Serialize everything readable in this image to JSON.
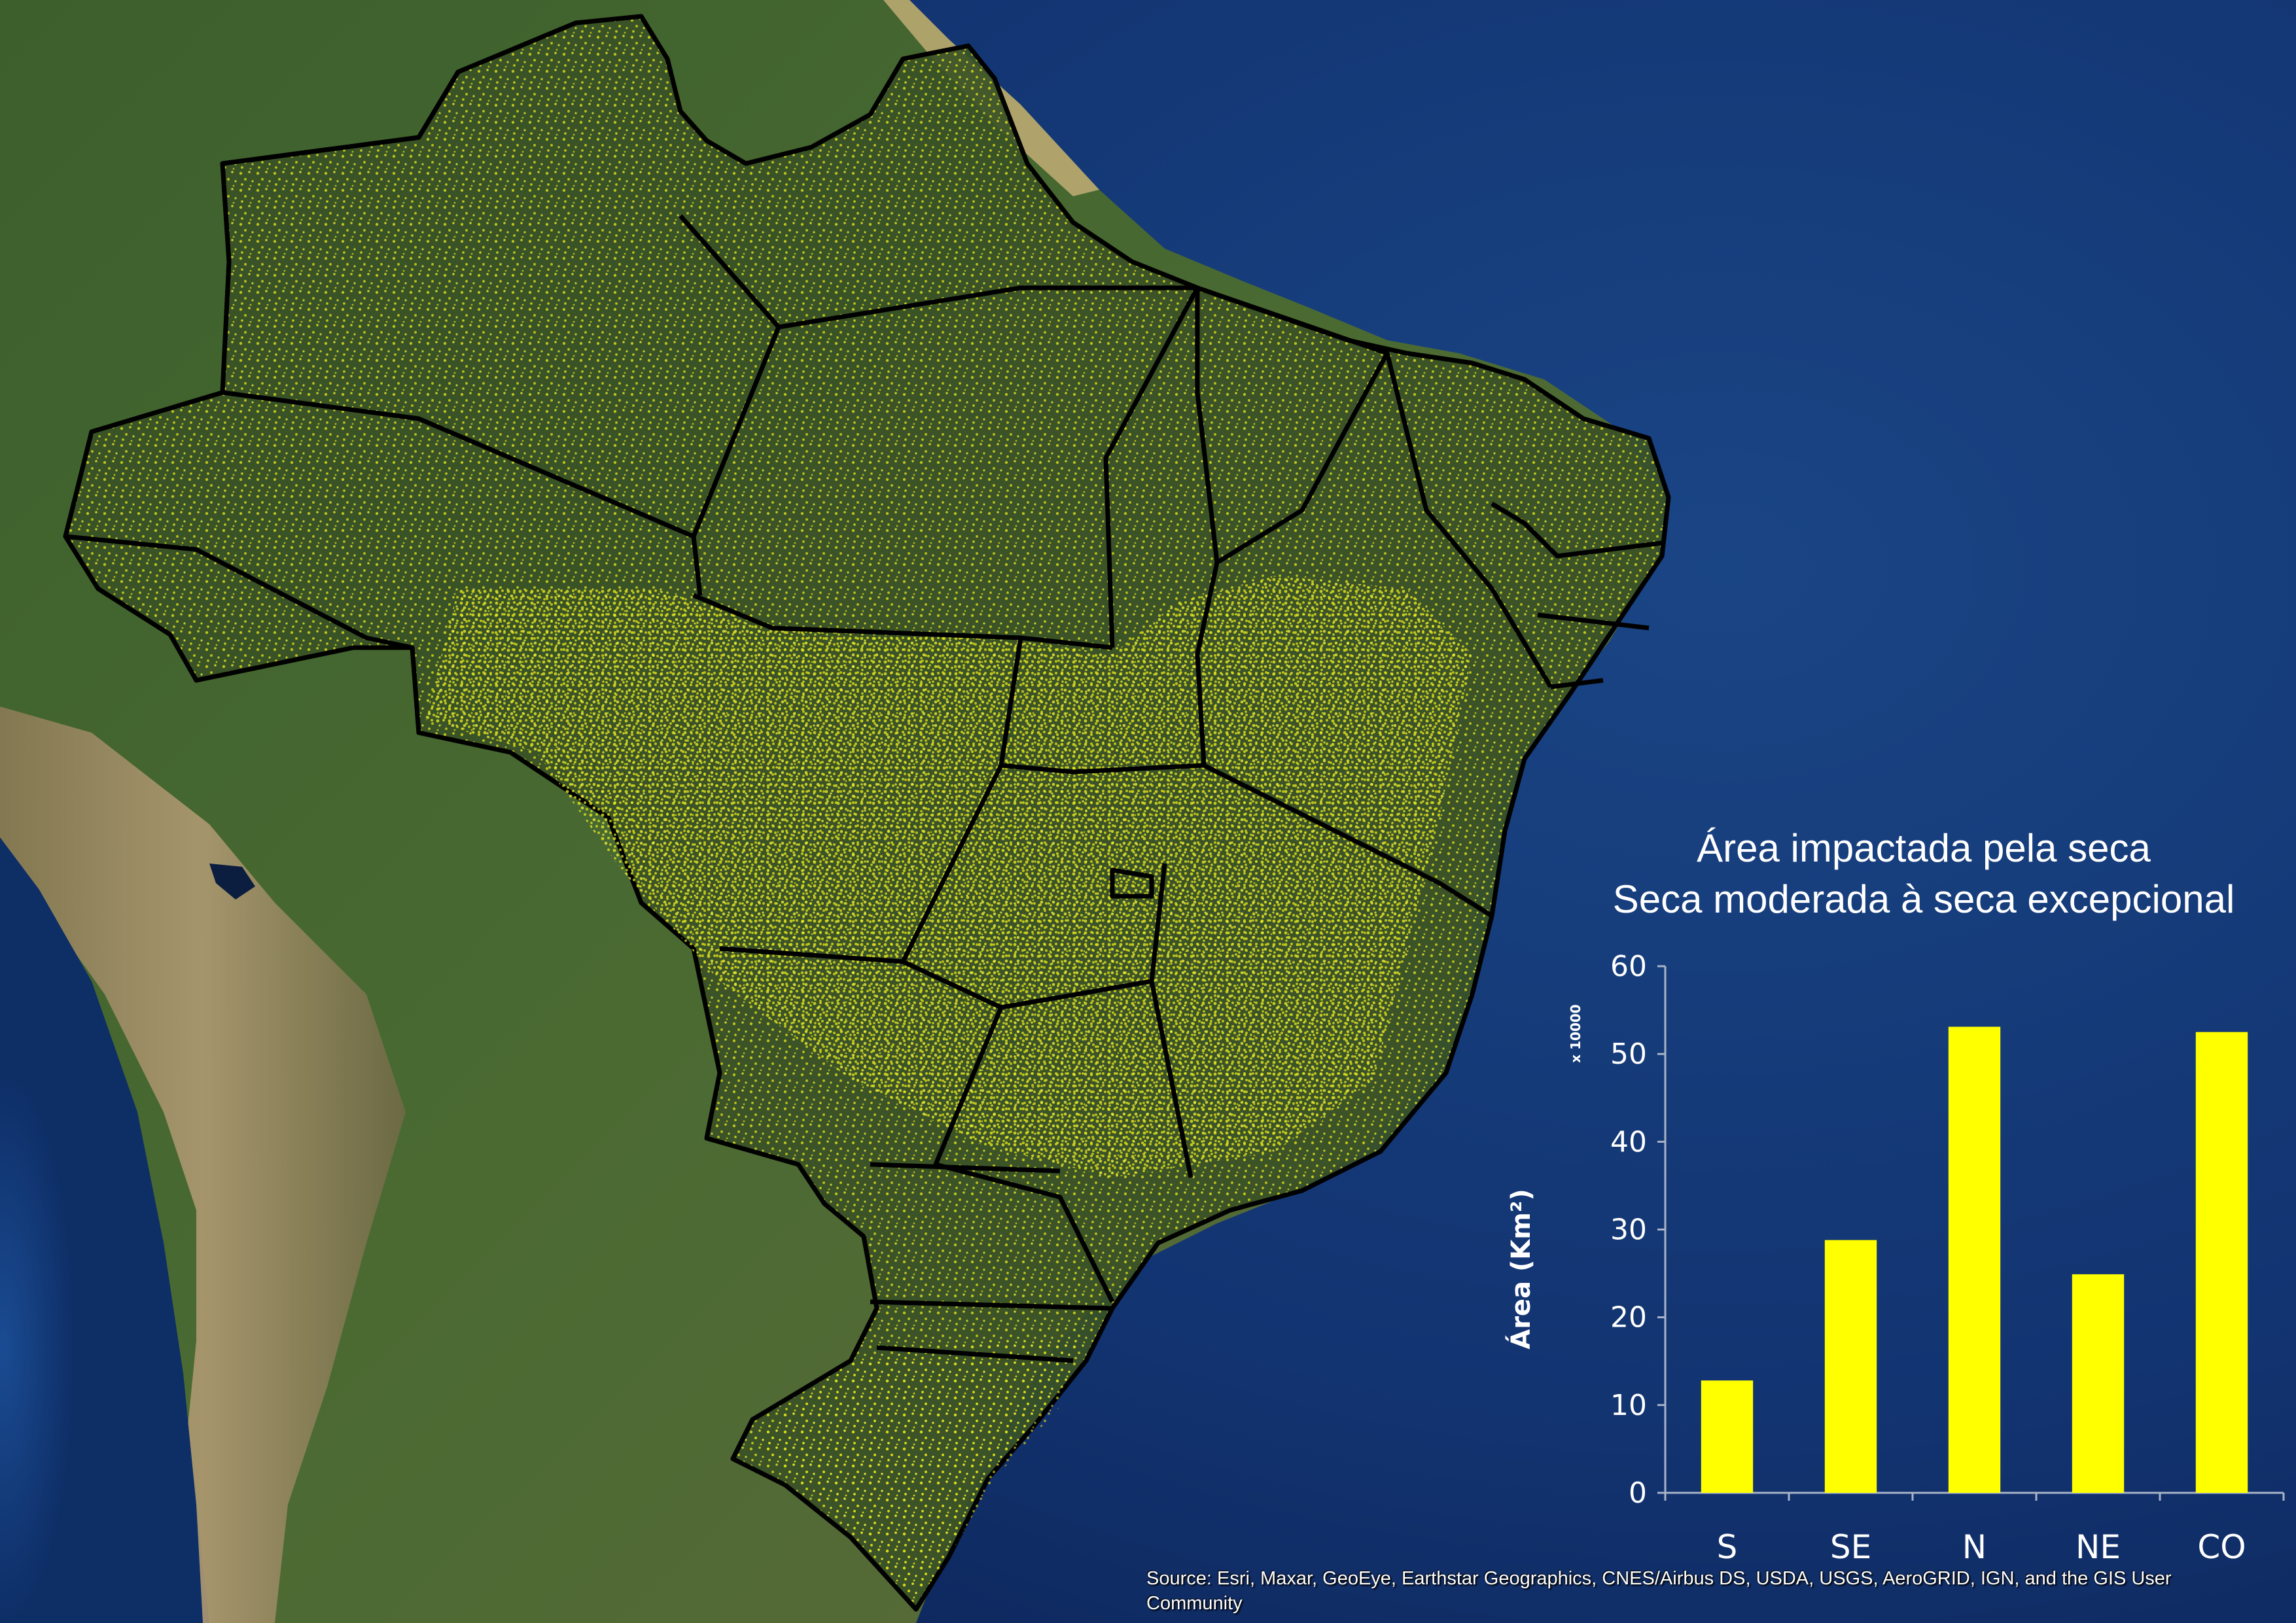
{
  "chart_data": {
    "type": "bar",
    "title": "Área impactada pela seca",
    "subtitle": "Seca moderada à seca excepcional",
    "xlabel": "",
    "ylabel": "Área (Km²)",
    "y_multiplier_label": "x 10000",
    "categories": [
      "S",
      "SE",
      "N",
      "NE",
      "CO"
    ],
    "values": [
      12.8,
      28.8,
      53.1,
      24.9,
      52.5
    ],
    "ylim": [
      0,
      60
    ],
    "yticks": [
      0,
      10,
      20,
      30,
      40,
      50,
      60
    ],
    "bar_color": "#ffff00",
    "grid": false,
    "legend": "none"
  },
  "map": {
    "dot_color": "#e8e81a",
    "ocean_color": "#10306b",
    "land_color": "#3f5a2a"
  },
  "attribution": "Source: Esri, Maxar, GeoEye, Earthstar Geographics, CNES/Airbus DS, USDA, USGS, AeroGRID, IGN, and the GIS User Community"
}
